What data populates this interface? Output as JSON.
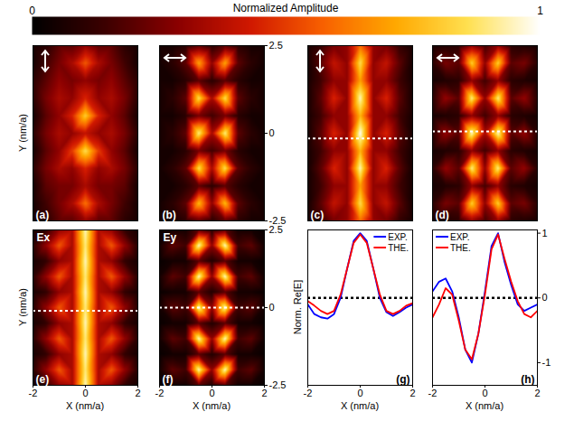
{
  "colorbar": {
    "title": "Normalized Amplitude",
    "range": [
      0,
      1
    ],
    "ticks": [
      0,
      1
    ]
  },
  "chart_data": [
    {
      "type": "heatmap",
      "panel": "(a)",
      "marker": "vertical_arrow",
      "ylabel": "Y (nm/a)",
      "tick_labels": false,
      "xlim": [
        -2,
        2
      ],
      "ylim": [
        -2.5,
        2.5
      ],
      "x": [
        -2,
        -1.5,
        -1,
        -0.5,
        0,
        0.5,
        1,
        1.5,
        2
      ],
      "y": [
        2.5,
        2,
        1.5,
        1,
        0.5,
        0,
        -0.5,
        -1,
        -1.5,
        -2,
        -2.5
      ],
      "cells": [
        [
          0.05,
          0.1,
          0.2,
          0.2,
          0.3,
          0.2,
          0.2,
          0.1,
          0.05
        ],
        [
          0.05,
          0.15,
          0.25,
          0.35,
          0.55,
          0.35,
          0.25,
          0.15,
          0.05
        ],
        [
          0.1,
          0.2,
          0.3,
          0.25,
          0.3,
          0.25,
          0.3,
          0.2,
          0.1
        ],
        [
          0.1,
          0.25,
          0.35,
          0.3,
          0.45,
          0.3,
          0.35,
          0.25,
          0.1
        ],
        [
          0.05,
          0.2,
          0.3,
          0.45,
          0.8,
          0.45,
          0.3,
          0.2,
          0.05
        ],
        [
          0.1,
          0.25,
          0.35,
          0.3,
          0.4,
          0.3,
          0.35,
          0.25,
          0.1
        ],
        [
          0.05,
          0.2,
          0.3,
          0.5,
          0.85,
          0.5,
          0.3,
          0.2,
          0.05
        ],
        [
          0.1,
          0.25,
          0.35,
          0.3,
          0.45,
          0.3,
          0.35,
          0.25,
          0.1
        ],
        [
          0.05,
          0.2,
          0.25,
          0.25,
          0.35,
          0.25,
          0.25,
          0.2,
          0.05
        ],
        [
          0.05,
          0.15,
          0.25,
          0.35,
          0.6,
          0.35,
          0.25,
          0.15,
          0.05
        ],
        [
          0.05,
          0.1,
          0.2,
          0.2,
          0.3,
          0.2,
          0.2,
          0.1,
          0.05
        ]
      ]
    },
    {
      "type": "heatmap",
      "panel": "(b)",
      "marker": "horizontal_arrow",
      "tick_labels": "y",
      "xlim": [
        -2,
        2
      ],
      "ylim": [
        -2.5,
        2.5
      ],
      "yticks": [
        -2.5,
        0,
        2.5
      ],
      "x": [
        -2,
        -1.5,
        -1,
        -0.5,
        0,
        0.5,
        1,
        1.5,
        2
      ],
      "y": [
        2.5,
        2,
        1.5,
        1,
        0.5,
        0,
        -0.5,
        -1,
        -1.5,
        -2,
        -2.5
      ],
      "cells": [
        [
          0.05,
          0.05,
          0.1,
          0.2,
          0.1,
          0.2,
          0.1,
          0.05,
          0.05
        ],
        [
          0.05,
          0.1,
          0.2,
          0.7,
          0.3,
          0.7,
          0.2,
          0.1,
          0.05
        ],
        [
          0.05,
          0.05,
          0.1,
          0.2,
          0.1,
          0.2,
          0.1,
          0.05,
          0.05
        ],
        [
          0.05,
          0.1,
          0.2,
          0.85,
          0.35,
          0.85,
          0.2,
          0.1,
          0.05
        ],
        [
          0.05,
          0.05,
          0.1,
          0.25,
          0.15,
          0.25,
          0.1,
          0.05,
          0.05
        ],
        [
          0.05,
          0.1,
          0.2,
          0.9,
          0.35,
          0.9,
          0.2,
          0.1,
          0.05
        ],
        [
          0.05,
          0.05,
          0.1,
          0.25,
          0.15,
          0.25,
          0.1,
          0.05,
          0.05
        ],
        [
          0.05,
          0.1,
          0.2,
          0.85,
          0.35,
          0.85,
          0.2,
          0.1,
          0.05
        ],
        [
          0.05,
          0.05,
          0.1,
          0.2,
          0.1,
          0.2,
          0.1,
          0.05,
          0.05
        ],
        [
          0.05,
          0.1,
          0.2,
          0.75,
          0.3,
          0.75,
          0.2,
          0.1,
          0.05
        ],
        [
          0.05,
          0.05,
          0.1,
          0.2,
          0.1,
          0.2,
          0.1,
          0.05,
          0.05
        ]
      ]
    },
    {
      "type": "heatmap",
      "panel": "(c)",
      "marker": "vertical_arrow",
      "tick_labels": false,
      "cut_y": -0.15,
      "xlim": [
        -2,
        2
      ],
      "ylim": [
        -2.5,
        2.5
      ],
      "x": [
        -2,
        -1.5,
        -1,
        -0.5,
        0,
        0.5,
        1,
        1.5,
        2
      ],
      "y": [
        2.5,
        2,
        1.5,
        1,
        0.5,
        0,
        -0.5,
        -1,
        -1.5,
        -2,
        -2.5
      ],
      "cells": [
        [
          0.05,
          0.12,
          0.25,
          0.3,
          0.6,
          0.3,
          0.25,
          0.12,
          0.05
        ],
        [
          0.05,
          0.2,
          0.4,
          0.3,
          0.85,
          0.3,
          0.4,
          0.2,
          0.05
        ],
        [
          0.05,
          0.15,
          0.3,
          0.3,
          0.7,
          0.3,
          0.3,
          0.15,
          0.05
        ],
        [
          0.05,
          0.2,
          0.45,
          0.3,
          0.95,
          0.3,
          0.45,
          0.2,
          0.05
        ],
        [
          0.05,
          0.15,
          0.3,
          0.3,
          0.75,
          0.3,
          0.3,
          0.15,
          0.05
        ],
        [
          0.05,
          0.2,
          0.45,
          0.3,
          1.0,
          0.3,
          0.45,
          0.2,
          0.05
        ],
        [
          0.05,
          0.15,
          0.3,
          0.3,
          0.75,
          0.3,
          0.3,
          0.15,
          0.05
        ],
        [
          0.05,
          0.2,
          0.45,
          0.3,
          0.95,
          0.3,
          0.45,
          0.2,
          0.05
        ],
        [
          0.05,
          0.15,
          0.3,
          0.3,
          0.7,
          0.3,
          0.3,
          0.15,
          0.05
        ],
        [
          0.05,
          0.2,
          0.4,
          0.3,
          0.85,
          0.3,
          0.4,
          0.2,
          0.05
        ],
        [
          0.05,
          0.12,
          0.25,
          0.3,
          0.6,
          0.3,
          0.25,
          0.12,
          0.05
        ]
      ]
    },
    {
      "type": "heatmap",
      "panel": "(d)",
      "marker": "horizontal_arrow",
      "tick_labels": false,
      "cut_y": 0.05,
      "xlim": [
        -2,
        2
      ],
      "ylim": [
        -2.5,
        2.5
      ],
      "x": [
        -2,
        -1.5,
        -1,
        -0.5,
        0,
        0.5,
        1,
        1.5,
        2
      ],
      "y": [
        2.5,
        2,
        1.5,
        1,
        0.5,
        0,
        -0.5,
        -1,
        -1.5,
        -2,
        -2.5
      ],
      "cells": [
        [
          0.05,
          0.08,
          0.1,
          0.3,
          0.15,
          0.3,
          0.1,
          0.08,
          0.05
        ],
        [
          0.1,
          0.25,
          0.2,
          0.8,
          0.3,
          0.8,
          0.2,
          0.25,
          0.1
        ],
        [
          0.05,
          0.08,
          0.1,
          0.3,
          0.15,
          0.3,
          0.1,
          0.08,
          0.05
        ],
        [
          0.1,
          0.3,
          0.2,
          0.9,
          0.3,
          0.9,
          0.2,
          0.3,
          0.1
        ],
        [
          0.05,
          0.08,
          0.1,
          0.3,
          0.15,
          0.3,
          0.1,
          0.08,
          0.05
        ],
        [
          0.1,
          0.3,
          0.2,
          0.95,
          0.35,
          0.95,
          0.2,
          0.3,
          0.1
        ],
        [
          0.05,
          0.08,
          0.1,
          0.3,
          0.15,
          0.3,
          0.1,
          0.08,
          0.05
        ],
        [
          0.1,
          0.3,
          0.2,
          0.9,
          0.3,
          0.9,
          0.2,
          0.3,
          0.1
        ],
        [
          0.05,
          0.08,
          0.1,
          0.3,
          0.15,
          0.3,
          0.1,
          0.08,
          0.05
        ],
        [
          0.1,
          0.25,
          0.2,
          0.8,
          0.3,
          0.8,
          0.2,
          0.25,
          0.1
        ],
        [
          0.05,
          0.08,
          0.1,
          0.3,
          0.15,
          0.3,
          0.1,
          0.08,
          0.05
        ]
      ]
    },
    {
      "type": "heatmap",
      "panel": "(e)",
      "annotation": "Ex",
      "xlabel": "X (nm/a)",
      "ylabel": "Y (nm/a)",
      "tick_labels": "x",
      "cut_y": -0.1,
      "xlim": [
        -2,
        2
      ],
      "ylim": [
        -2.5,
        2.5
      ],
      "xticks": [
        -2,
        0,
        2
      ],
      "x": [
        -2,
        -1.5,
        -1,
        -0.5,
        0,
        0.5,
        1,
        1.5,
        2
      ],
      "y": [
        2.5,
        2,
        1.5,
        1,
        0.5,
        0,
        -0.5,
        -1,
        -1.5,
        -2,
        -2.5
      ],
      "cells": [
        [
          0.05,
          0.12,
          0.3,
          0.35,
          0.95,
          0.35,
          0.3,
          0.12,
          0.05
        ],
        [
          0.1,
          0.3,
          0.55,
          0.35,
          0.9,
          0.35,
          0.55,
          0.3,
          0.1
        ],
        [
          0.05,
          0.12,
          0.3,
          0.35,
          0.95,
          0.35,
          0.3,
          0.12,
          0.05
        ],
        [
          0.1,
          0.3,
          0.55,
          0.35,
          0.9,
          0.35,
          0.55,
          0.3,
          0.1
        ],
        [
          0.05,
          0.12,
          0.3,
          0.35,
          0.95,
          0.35,
          0.3,
          0.12,
          0.05
        ],
        [
          0.1,
          0.3,
          0.55,
          0.35,
          0.9,
          0.35,
          0.55,
          0.3,
          0.1
        ],
        [
          0.05,
          0.12,
          0.3,
          0.35,
          0.95,
          0.35,
          0.3,
          0.12,
          0.05
        ],
        [
          0.1,
          0.3,
          0.55,
          0.35,
          0.9,
          0.35,
          0.55,
          0.3,
          0.1
        ],
        [
          0.05,
          0.12,
          0.3,
          0.35,
          0.95,
          0.35,
          0.3,
          0.12,
          0.05
        ],
        [
          0.1,
          0.3,
          0.55,
          0.35,
          0.9,
          0.35,
          0.55,
          0.3,
          0.1
        ],
        [
          0.05,
          0.12,
          0.3,
          0.35,
          0.95,
          0.35,
          0.3,
          0.12,
          0.05
        ]
      ]
    },
    {
      "type": "heatmap",
      "panel": "(f)",
      "annotation": "Ey",
      "xlabel": "X (nm/a)",
      "cut_y": 0,
      "xlim": [
        -2,
        2
      ],
      "ylim": [
        -2.5,
        2.5
      ],
      "xticks": [
        -2,
        0,
        2
      ],
      "yticks": [
        -2.5,
        0,
        2.5
      ],
      "x": [
        -2,
        -1.5,
        -1,
        -0.5,
        0,
        0.5,
        1,
        1.5,
        2
      ],
      "y": [
        2.5,
        2,
        1.5,
        1,
        0.5,
        0,
        -0.5,
        -1,
        -1.5,
        -2,
        -2.5
      ],
      "cells": [
        [
          0.02,
          0.05,
          0.05,
          0.2,
          0.08,
          0.2,
          0.05,
          0.05,
          0.02
        ],
        [
          0.05,
          0.2,
          0.15,
          0.95,
          0.3,
          0.95,
          0.15,
          0.2,
          0.05
        ],
        [
          0.02,
          0.05,
          0.05,
          0.2,
          0.08,
          0.2,
          0.05,
          0.05,
          0.02
        ],
        [
          0.05,
          0.2,
          0.15,
          0.95,
          0.3,
          0.95,
          0.15,
          0.2,
          0.05
        ],
        [
          0.02,
          0.05,
          0.05,
          0.2,
          0.08,
          0.2,
          0.05,
          0.05,
          0.02
        ],
        [
          0.05,
          0.2,
          0.15,
          0.95,
          0.3,
          0.95,
          0.15,
          0.2,
          0.05
        ],
        [
          0.02,
          0.05,
          0.05,
          0.2,
          0.08,
          0.2,
          0.05,
          0.05,
          0.02
        ],
        [
          0.05,
          0.2,
          0.15,
          0.95,
          0.3,
          0.95,
          0.15,
          0.2,
          0.05
        ],
        [
          0.02,
          0.05,
          0.05,
          0.2,
          0.08,
          0.2,
          0.05,
          0.05,
          0.02
        ],
        [
          0.05,
          0.2,
          0.15,
          0.95,
          0.3,
          0.95,
          0.15,
          0.2,
          0.05
        ],
        [
          0.02,
          0.05,
          0.05,
          0.2,
          0.08,
          0.2,
          0.05,
          0.05,
          0.02
        ]
      ]
    },
    {
      "type": "line",
      "panel": "(g)",
      "xlabel": "X (nm/a)",
      "ylabel": "Norm. Re[E]",
      "tick_labels": "x",
      "legend": "top-right",
      "xlim": [
        -2,
        2
      ],
      "ylim": [
        -1.35,
        1.05
      ],
      "xticks": [
        -2,
        0,
        2
      ],
      "reference_line_y": 0,
      "x": [
        -2,
        -1.75,
        -1.5,
        -1.25,
        -1,
        -0.75,
        -0.5,
        -0.25,
        0,
        0.25,
        0.5,
        0.75,
        1,
        1.25,
        1.5,
        1.75,
        2
      ],
      "series": [
        {
          "name": "EXP.",
          "color": "#0000ff",
          "values": [
            -0.1,
            -0.25,
            -0.3,
            -0.32,
            -0.25,
            0.0,
            0.45,
            0.88,
            1.0,
            0.88,
            0.45,
            0.0,
            -0.22,
            -0.28,
            -0.22,
            -0.15,
            -0.1
          ]
        },
        {
          "name": "THE.",
          "color": "#ff0000",
          "values": [
            -0.05,
            -0.12,
            -0.2,
            -0.25,
            -0.2,
            0.05,
            0.45,
            0.85,
            0.98,
            0.85,
            0.45,
            0.05,
            -0.2,
            -0.25,
            -0.2,
            -0.12,
            -0.08
          ]
        }
      ]
    },
    {
      "type": "line",
      "panel": "(h)",
      "xlabel": "X (nm/a)",
      "legend": "top-left",
      "xlim": [
        -2,
        2
      ],
      "ylim": [
        -1.35,
        1.05
      ],
      "xticks": [
        -2,
        0,
        2
      ],
      "yticks": [
        -1,
        0,
        1
      ],
      "reference_line_y": 0,
      "x": [
        -2,
        -1.75,
        -1.5,
        -1.25,
        -1,
        -0.75,
        -0.5,
        -0.25,
        0,
        0.25,
        0.5,
        0.75,
        1,
        1.25,
        1.5,
        1.75,
        2
      ],
      "series": [
        {
          "name": "EXP.",
          "color": "#0000ff",
          "values": [
            0.1,
            0.25,
            0.3,
            0.1,
            -0.3,
            -0.8,
            -1.0,
            -0.55,
            0.1,
            0.8,
            1.0,
            0.55,
            0.2,
            -0.1,
            -0.2,
            -0.15,
            -0.1
          ]
        },
        {
          "name": "THE.",
          "color": "#ff0000",
          "values": [
            -0.3,
            -0.1,
            0.15,
            0.05,
            -0.35,
            -0.8,
            -0.95,
            -0.55,
            0.05,
            0.75,
            0.98,
            0.6,
            0.25,
            -0.05,
            -0.25,
            -0.3,
            -0.2
          ]
        }
      ]
    }
  ]
}
